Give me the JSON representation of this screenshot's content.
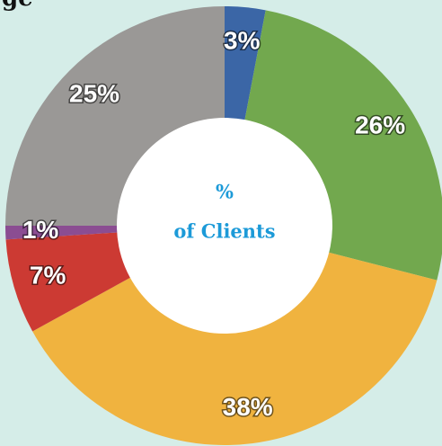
{
  "chart_data": {
    "type": "donut",
    "title": "ge",
    "center_label": [
      "%",
      "of Clients"
    ],
    "values": [
      3,
      26,
      38,
      7,
      1,
      25
    ],
    "value_labels": [
      "3%",
      "26%",
      "38%",
      "7%",
      "1%",
      "25%"
    ],
    "colors": [
      "#3b66a6",
      "#72a84e",
      "#f0b33f",
      "#cc3a33",
      "#8b4d92",
      "#9a9896"
    ]
  }
}
